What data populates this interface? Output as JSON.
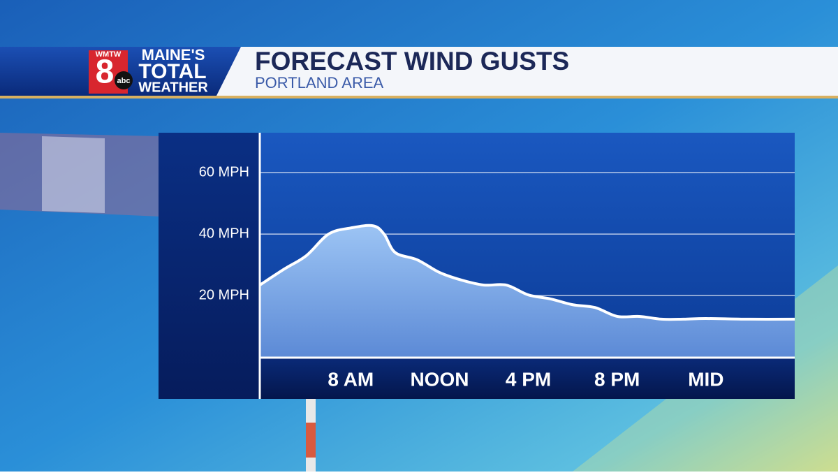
{
  "branding": {
    "station": "WMTW",
    "channel": "8",
    "network": "abc",
    "line1": "MAINE'S",
    "line2": "TOTAL",
    "line3": "WEATHER"
  },
  "chart_data": {
    "type": "area",
    "title": "FORECAST WIND GUSTS",
    "subtitle": "PORTLAND AREA",
    "x": [
      3.9,
      5,
      6,
      7,
      8,
      9,
      9.5,
      10,
      11,
      12,
      13,
      14,
      15,
      16,
      17,
      18,
      19,
      20,
      21,
      22,
      23,
      24,
      26,
      28
    ],
    "values": [
      23.4,
      28.6,
      33,
      40,
      42,
      42.7,
      40,
      34,
      31.6,
      27.5,
      25,
      23.4,
      23.4,
      20.2,
      18.9,
      17,
      16.1,
      13.2,
      13.2,
      12.3,
      12.3,
      12.5,
      12.3,
      12.3
    ],
    "xlim": [
      3.9,
      28
    ],
    "xticks": [
      {
        "value": 8,
        "label": "8 AM"
      },
      {
        "value": 12,
        "label": "NOON"
      },
      {
        "value": 16,
        "label": "4 PM"
      },
      {
        "value": 20,
        "label": "8 PM"
      },
      {
        "value": 24,
        "label": "MID"
      }
    ],
    "ylim": [
      0,
      73
    ],
    "yticks": [
      {
        "value": 20,
        "label": "20 MPH"
      },
      {
        "value": 40,
        "label": "40 MPH"
      },
      {
        "value": 60,
        "label": "60 MPH"
      }
    ],
    "grid": true,
    "color": "#ffffff"
  }
}
